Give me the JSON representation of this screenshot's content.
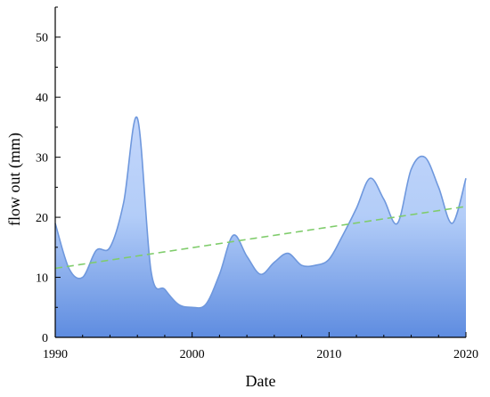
{
  "chart_data": {
    "type": "area",
    "title": "",
    "xlabel": "Date",
    "ylabel": "flow out (mm)",
    "xlim": [
      1990,
      2020
    ],
    "ylim": [
      0,
      55
    ],
    "x_ticks": [
      1990,
      2000,
      2010,
      2020
    ],
    "x_tick_labels": [
      "1990",
      "2000",
      "2010",
      "2020"
    ],
    "y_ticks": [
      0,
      10,
      20,
      30,
      40,
      50
    ],
    "y_tick_labels": [
      "0",
      "10",
      "20",
      "30",
      "40",
      "50"
    ],
    "grid": false,
    "legend": "none",
    "series": [
      {
        "x": [
          1990,
          1991,
          1992,
          1993,
          1994,
          1995,
          1996,
          1997,
          1998,
          1999,
          2000,
          2001,
          2002,
          2003,
          2004,
          2005,
          2006,
          2007,
          2008,
          2009,
          2010,
          2011,
          2012,
          2013,
          2014,
          2015,
          2016,
          2017,
          2018,
          2019,
          2020
        ],
        "values": [
          19,
          11.5,
          10,
          14.5,
          15,
          22.5,
          36.5,
          11,
          8,
          5.5,
          5,
          5.5,
          10.5,
          17,
          13.5,
          10.5,
          12.5,
          14,
          12,
          12,
          13,
          17,
          21.5,
          26.5,
          23,
          19,
          28,
          30,
          25,
          19,
          26.5
        ]
      },
      {
        "type": "trend-line",
        "style": "dashed",
        "x": [
          1990,
          2020
        ],
        "values": [
          11.5,
          21.8
        ]
      }
    ],
    "colors": {
      "line": "#6f98dd",
      "area_top": "#c3d6fb",
      "area_bottom": "#5e8ce0",
      "trend": "#7fcc6b",
      "axis": "#000000"
    }
  }
}
